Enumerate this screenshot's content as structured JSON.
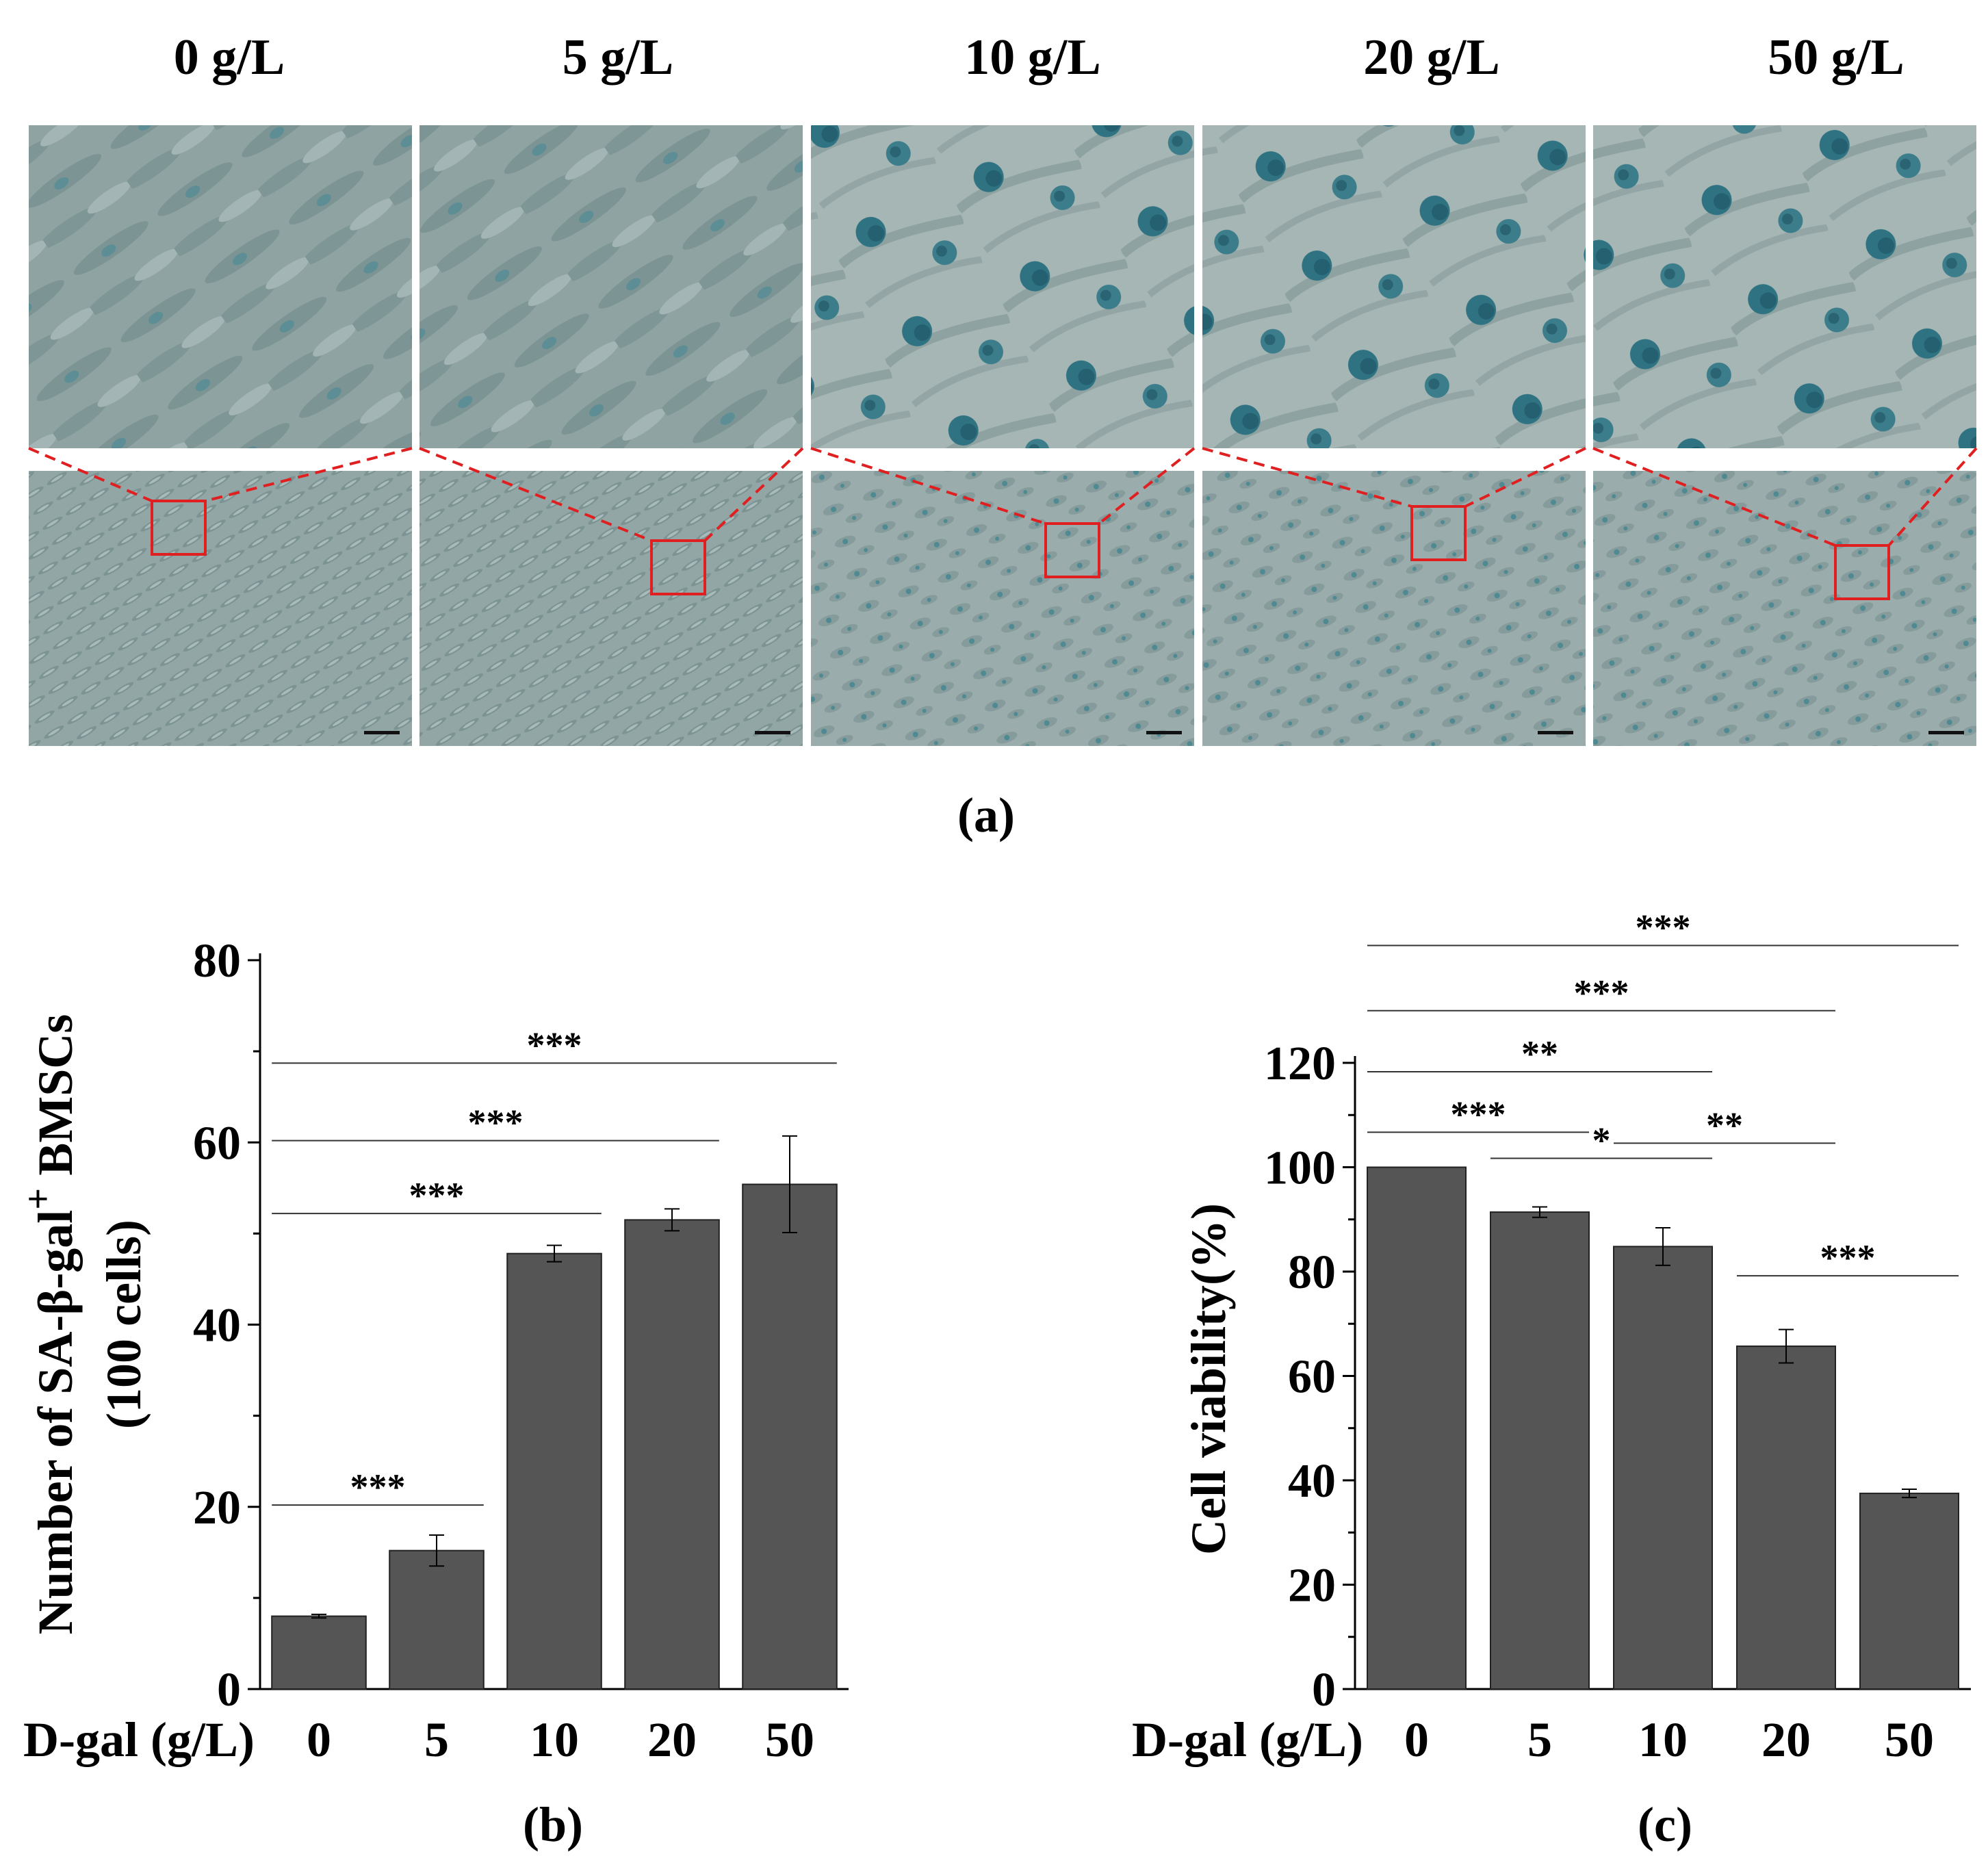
{
  "panel_a": {
    "label": "(a)",
    "concentrations": [
      "0 g/L",
      "5 g/L",
      "10 g/L",
      "20 g/L",
      "50 g/L"
    ],
    "panels": [
      {
        "cell_density": "high",
        "stain": "low"
      },
      {
        "cell_density": "high",
        "stain": "low"
      },
      {
        "cell_density": "medium",
        "stain": "high"
      },
      {
        "cell_density": "medium",
        "stain": "high"
      },
      {
        "cell_density": "low",
        "stain": "high"
      }
    ],
    "colors": {
      "micrograph_bg": "#8fa3a3",
      "stain": "#2b6f7f",
      "zoom_box": "#e02020"
    }
  },
  "chart_data": [
    {
      "id": "b",
      "type": "bar",
      "panel_label": "(b)",
      "xlabel": "D-gal (g/L)",
      "ylabel_line1": "Number of SA-β-gal",
      "ylabel_sup": "+",
      "ylabel_rest": " BMSCs",
      "ylabel_line2": "(100 cells)",
      "categories": [
        "0",
        "5",
        "10",
        "20",
        "50"
      ],
      "values": [
        8,
        15.2,
        47.8,
        51.5,
        55.4
      ],
      "errors": [
        0.2,
        1.7,
        0.9,
        1.2,
        5.3
      ],
      "ylim": [
        0,
        80
      ],
      "yticks": [
        "0",
        "20",
        "40",
        "60",
        "80"
      ],
      "significance": [
        {
          "from": 0,
          "to": 1,
          "y": 20.2,
          "label": "***"
        },
        {
          "from": 0,
          "to": 2,
          "y": 52.2,
          "label": "***"
        },
        {
          "from": 0,
          "to": 3,
          "y": 60.2,
          "label": "***"
        },
        {
          "from": 0,
          "to": 4,
          "y": 68.7,
          "label": "***"
        }
      ],
      "bar_color": "#555555"
    },
    {
      "id": "c",
      "type": "bar",
      "panel_label": "(c)",
      "xlabel": "D-gal (g/L)",
      "ylabel": "Cell viability(%)",
      "categories": [
        "0",
        "5",
        "10",
        "20",
        "50"
      ],
      "values": [
        100,
        91.4,
        84.8,
        65.7,
        37.5
      ],
      "errors": [
        0,
        1.0,
        3.6,
        3.2,
        0.8
      ],
      "ylim": [
        0,
        120
      ],
      "yticks": [
        "0",
        "20",
        "40",
        "60",
        "80",
        "100",
        "120"
      ],
      "significance": [
        {
          "from": 0,
          "to": 1,
          "y": 106.7,
          "label": "***"
        },
        {
          "from": 1,
          "to": 2,
          "y": 101.7,
          "label": "*"
        },
        {
          "from": 0,
          "to": 2,
          "y": 118.3,
          "label": "**"
        },
        {
          "from": 2,
          "to": 3,
          "y": 104.6,
          "label": "**"
        },
        {
          "from": 0,
          "to": 3,
          "y": 130,
          "label": "***"
        },
        {
          "from": 3,
          "to": 4,
          "y": 79.2,
          "label": "***"
        },
        {
          "from": 0,
          "to": 4,
          "y": 142.5,
          "label": "***"
        }
      ],
      "bar_color": "#555555"
    }
  ]
}
